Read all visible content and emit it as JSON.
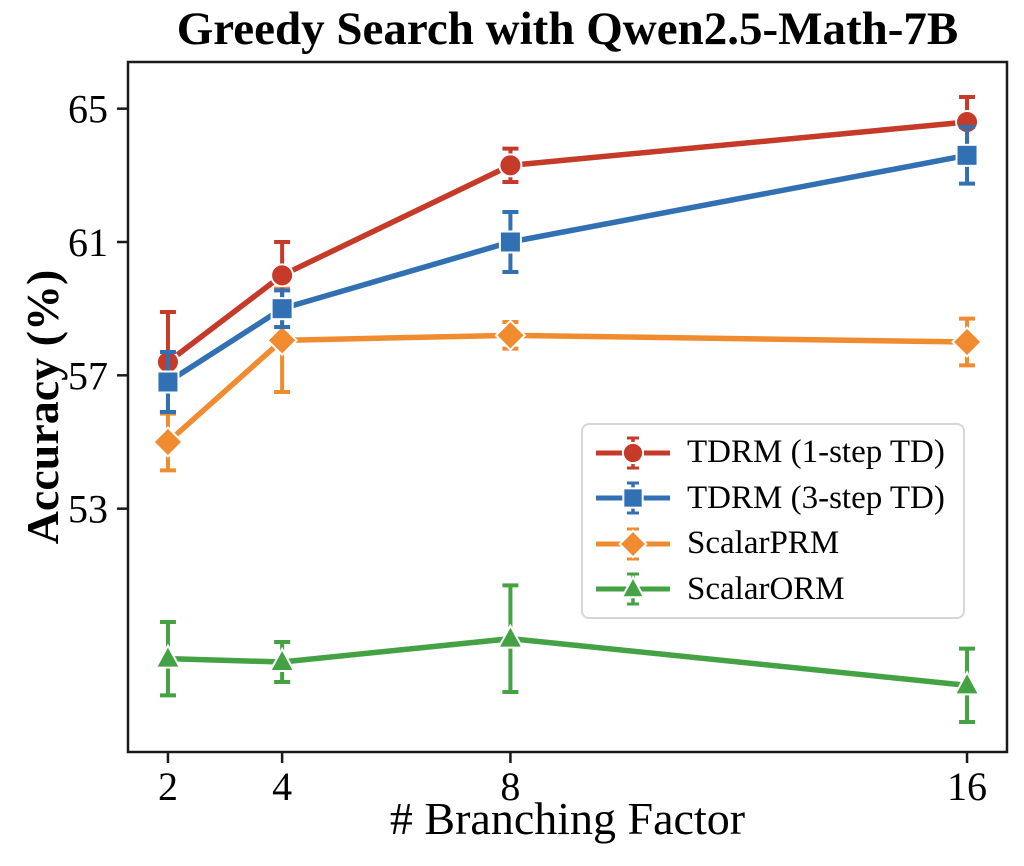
{
  "chart_data": {
    "type": "line",
    "title": "Greedy Search with Qwen2.5-Math-7B",
    "xlabel": "# Branching Factor",
    "ylabel": "Accuracy (%)",
    "x": [
      2,
      4,
      8,
      16
    ],
    "xticks": [
      "2",
      "4",
      "8",
      "16"
    ],
    "yticks": [
      "65",
      "61",
      "57",
      "53"
    ],
    "ytick_values": [
      65,
      61,
      57,
      53
    ],
    "xlim": [
      1.3,
      16.7
    ],
    "ylim": [
      45.7,
      66.4
    ],
    "x_scale": "linear",
    "grid": false,
    "error_bars": true,
    "legend_position": "center-right",
    "colors": {
      "axis": "#1a1a1a",
      "text": "#000000",
      "legend_border": "#d6d6d6"
    },
    "series": [
      {
        "name": "TDRM (1-step TD)",
        "color": "#c53a29",
        "marker": "circle",
        "values": [
          57.4,
          60.0,
          63.3,
          64.6
        ],
        "errors": [
          1.5,
          1.0,
          0.5,
          0.75
        ]
      },
      {
        "name": "TDRM (3-step TD)",
        "color": "#3170b3",
        "marker": "square",
        "values": [
          56.8,
          59.0,
          61.0,
          63.6
        ],
        "errors": [
          0.9,
          0.55,
          0.9,
          0.85
        ]
      },
      {
        "name": "ScalarPRM",
        "color": "#f08b30",
        "marker": "diamond",
        "values": [
          55.0,
          58.05,
          58.2,
          58.0
        ],
        "errors": [
          0.85,
          1.55,
          0.4,
          0.7
        ]
      },
      {
        "name": "ScalarORM",
        "color": "#44a244",
        "marker": "triangle",
        "values": [
          48.5,
          48.4,
          49.1,
          47.7
        ],
        "errors": [
          1.1,
          0.6,
          1.6,
          1.1
        ]
      }
    ]
  }
}
